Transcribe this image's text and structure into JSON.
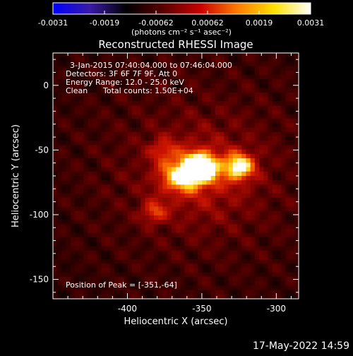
{
  "colorbar": {
    "ticks": [
      "-0.0031",
      "-0.0019",
      "-0.00062",
      "0.00062",
      "0.0019",
      "0.0031"
    ],
    "unit_label": "(photons cm⁻² s⁻¹ asec⁻²)",
    "range": [
      -0.0031,
      0.0031
    ],
    "colormap_colors": [
      "#0000ff",
      "#3a1aa8",
      "#000000",
      "#5a0000",
      "#c80000",
      "#ff7a00",
      "#ffe000",
      "#ffffff"
    ]
  },
  "chart_data": {
    "type": "heatmap",
    "title": "Reconstructed RHESSI Image",
    "xlabel": "Heliocentric X (arcsec)",
    "ylabel": "Heliocentric Y (arcsec)",
    "xlim": [
      -450,
      -285
    ],
    "ylim": [
      -165,
      25
    ],
    "xticks": [
      -400,
      -350,
      -300
    ],
    "yticks": [
      0,
      -50,
      -100,
      -150
    ],
    "sources": [
      {
        "x": -351,
        "y": -64,
        "intensity": 1.0,
        "sigma": 8
      },
      {
        "x": -325,
        "y": -63,
        "intensity": 0.78,
        "sigma": 7
      },
      {
        "x": -365,
        "y": -70,
        "intensity": 0.55,
        "sigma": 9
      },
      {
        "x": -376,
        "y": -50,
        "intensity": 0.3,
        "sigma": 6
      },
      {
        "x": -382,
        "y": -98,
        "intensity": 0.38,
        "sigma": 6
      },
      {
        "x": -350,
        "y": -70,
        "intensity": 0.22,
        "sigma": 25
      }
    ],
    "peak": [
      -351,
      -64
    ]
  },
  "annotations": {
    "time_range": "3-Jan-2015 07:40:04.000 to 07:46:04.000",
    "detectors": "Detectors: 3F 6F 7F 9F, Att 0",
    "energy_range": "Energy Range: 12.0 - 25.0 keV",
    "clean": "Clean",
    "total_counts": "Total counts: 1.50E+04",
    "peak_position": "Position of Peak = [-351,-64]"
  },
  "footer": {
    "date": "17-May-2022 14:59"
  }
}
